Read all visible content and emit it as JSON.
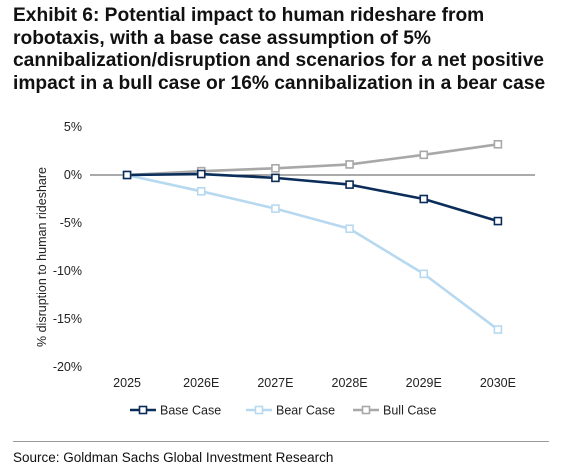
{
  "title_lines": [
    "Exhibit 6: Potential impact to human rideshare from",
    "robotaxis, with a base case assumption of 5%",
    "cannibalization/disruption and scenarios for a net positive",
    "impact in a bull case or 16% cannibalization in a bear case"
  ],
  "source": "Source: Goldman Sachs Global Investment Research",
  "chart_data": {
    "type": "line",
    "x": [
      "2025",
      "2026E",
      "2027E",
      "2028E",
      "2029E",
      "2030E"
    ],
    "ylabel": "% disruption to human rideshare",
    "ylim": [
      -20,
      5
    ],
    "yticks": [
      5,
      0,
      -5,
      -10,
      -15,
      -20
    ],
    "ytick_labels": [
      "5%",
      "0%",
      "-5%",
      "-10%",
      "-15%",
      "-20%"
    ],
    "grid": false,
    "legend": "bottom",
    "series": [
      {
        "name": "Base Case",
        "color": "#0b2d5a",
        "marker_fill": "#ffffff",
        "values": [
          0.0,
          0.1,
          -0.3,
          -1.0,
          -2.5,
          -4.8
        ]
      },
      {
        "name": "Bear Case",
        "color": "#b7d9f0",
        "marker_fill": "#ffffff",
        "values": [
          0.0,
          -1.7,
          -3.5,
          -5.6,
          -10.3,
          -16.1
        ]
      },
      {
        "name": "Bull Case",
        "color": "#a8a8a8",
        "marker_fill": "#ffffff",
        "values": [
          0.0,
          0.4,
          0.7,
          1.1,
          2.1,
          3.2
        ]
      }
    ]
  }
}
